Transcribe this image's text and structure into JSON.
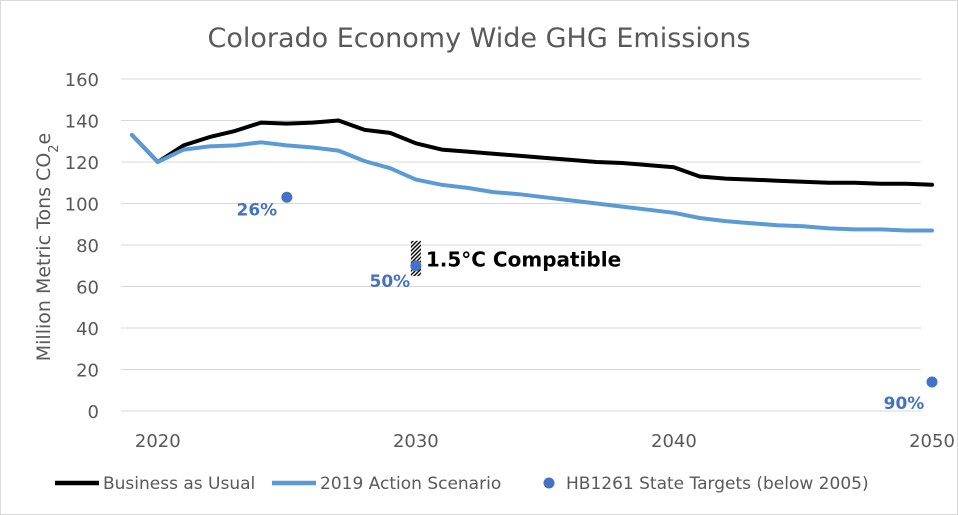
{
  "chart_data": {
    "type": "line",
    "title": "Colorado Economy Wide GHG Emissions",
    "ylabel": "Million Metric Tons CO2e",
    "ylabel_parts": {
      "main": "Million Metric Tons CO",
      "sub": "2",
      "tail": "e"
    },
    "xlabel": "",
    "xlim": [
      2019,
      2050
    ],
    "ylim": [
      0,
      160
    ],
    "x_ticks": [
      2020,
      2030,
      2040,
      2050
    ],
    "y_ticks": [
      0,
      20,
      40,
      60,
      80,
      100,
      120,
      140,
      160
    ],
    "grid": true,
    "legend_position": "bottom",
    "series": [
      {
        "name": "Business as Usual",
        "color": "#000000",
        "x": [
          2019,
          2020,
          2021,
          2022,
          2023,
          2024,
          2025,
          2026,
          2027,
          2028,
          2029,
          2030,
          2031,
          2032,
          2033,
          2034,
          2035,
          2036,
          2037,
          2038,
          2039,
          2040,
          2041,
          2042,
          2043,
          2044,
          2045,
          2046,
          2047,
          2048,
          2049,
          2050
        ],
        "values": [
          133,
          120,
          128,
          132,
          135,
          139,
          138.5,
          139,
          140,
          135.5,
          134,
          129,
          126,
          125,
          124,
          123,
          122,
          121,
          120,
          119.5,
          118.5,
          117.5,
          113,
          112,
          111.5,
          111,
          110.5,
          110,
          110,
          109.5,
          109.5,
          109
        ]
      },
      {
        "name": "2019 Action Scenario",
        "color": "#5b9bd5",
        "x": [
          2019,
          2020,
          2021,
          2022,
          2023,
          2024,
          2025,
          2026,
          2027,
          2028,
          2029,
          2030,
          2031,
          2032,
          2033,
          2034,
          2035,
          2036,
          2037,
          2038,
          2039,
          2040,
          2041,
          2042,
          2043,
          2044,
          2045,
          2046,
          2047,
          2048,
          2049,
          2050
        ],
        "values": [
          133,
          120,
          126,
          127.5,
          128,
          129.5,
          128,
          127,
          125.5,
          120.5,
          117,
          111.5,
          109,
          107.5,
          105.5,
          104.5,
          103,
          101.5,
          100,
          98.5,
          97,
          95.5,
          93,
          91.5,
          90.5,
          89.5,
          89,
          88,
          87.5,
          87.5,
          87,
          87
        ]
      },
      {
        "name": "HB1261 State Targets (below 2005)",
        "color": "#4472c4",
        "type": "scatter",
        "points": [
          {
            "x": 2025,
            "y": 103,
            "label": "26%"
          },
          {
            "x": 2030,
            "y": 70,
            "label": "50%"
          },
          {
            "x": 2050,
            "y": 14,
            "label": "90%"
          }
        ]
      }
    ],
    "annotations": [
      {
        "text": "1.5°C Compatible",
        "x": 2030,
        "y_range": [
          65,
          82
        ]
      }
    ]
  }
}
